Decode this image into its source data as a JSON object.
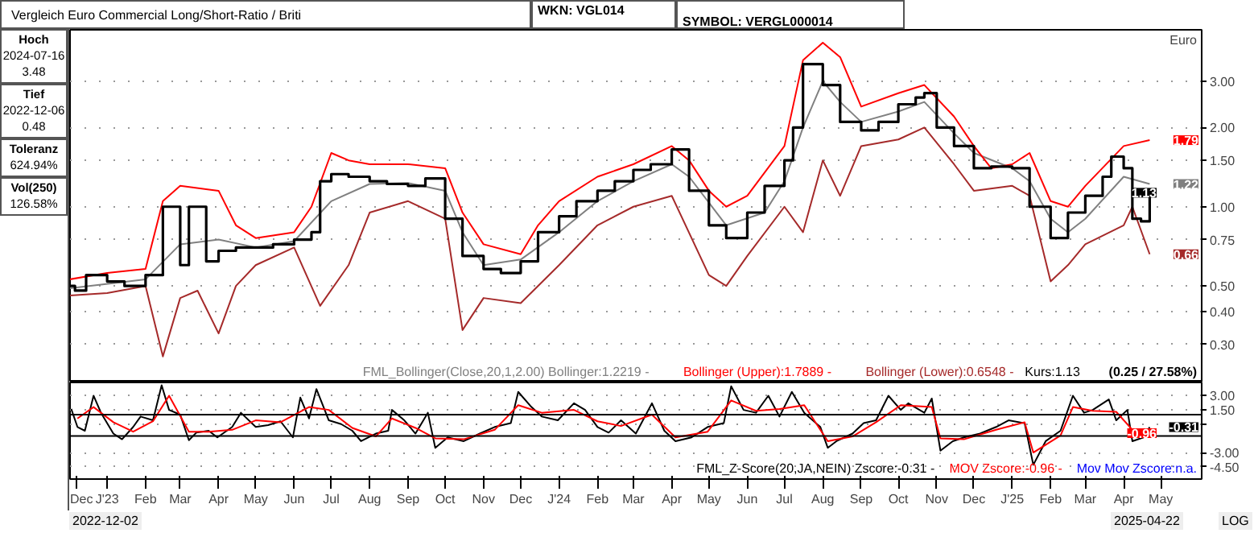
{
  "chart_data": [
    {
      "type": "line",
      "title": "Vergleich Euro Commercial Long/Short-Ratio / Briti",
      "subtitle": "WKN: VGL014",
      "ylabel": "Euro",
      "annotations": [
        "SYMBOL: VERGL000014",
        "Hoch\n2024-07-16\n3.48",
        "Tief\n2022-12-06\n0.48",
        "Toleranz\n624.94%",
        "Vol(250)\n126.58%",
        "(0.25 / 27.58%)",
        {
          "text": "1.79",
          "x": "2025-04-22",
          "y": 1.79
        },
        {
          "text": "1.22",
          "x": "2025-04-22",
          "y": 1.22
        },
        {
          "text": "1.13",
          "x": "2025-04-22",
          "y": 1.13
        },
        {
          "text": "0.66",
          "x": "2025-04-22",
          "y": 0.66
        }
      ],
      "xlim": [
        "2022-12-02",
        "2025-06-03"
      ],
      "ylim": [
        0.215,
        4.7
      ],
      "log": true,
      "grid": "y",
      "tick_labels": "y",
      "yticks": [
        {
          "value": 0.3,
          "label": "0.30"
        },
        {
          "value": 0.4,
          "label": "0.40"
        },
        {
          "value": 0.5,
          "label": "0.50"
        },
        {
          "value": 0.75,
          "label": "0.75"
        },
        {
          "value": 1,
          "label": "1.00"
        },
        {
          "value": 1.5,
          "label": "1.50"
        },
        {
          "value": 2,
          "label": "2.00"
        },
        {
          "value": 3,
          "label": "3.00"
        }
      ],
      "series": [
        {
          "name": "FML_Bollinger(Close,20,1,2.00) Bollinger:1.2219 -",
          "color": "#808080",
          "x": [
            "2022-12-02",
            "2023-02-01",
            "2023-03-01",
            "2023-04-01",
            "2023-05-01",
            "2023-06-01",
            "2023-07-01",
            "2023-08-01",
            "2023-09-01",
            "2023-10-01",
            "2023-10-15",
            "2023-11-01",
            "2023-12-01",
            "2024-01-01",
            "2024-02-01",
            "2024-03-01",
            "2024-04-01",
            "2024-04-15",
            "2024-05-15",
            "2024-06-15",
            "2024-07-01",
            "2024-07-16",
            "2024-08-01",
            "2024-08-15",
            "2024-09-01",
            "2024-10-01",
            "2024-10-22",
            "2024-11-15",
            "2024-12-01",
            "2025-01-01",
            "2025-01-15",
            "2025-02-01",
            "2025-02-15",
            "2025-03-01",
            "2025-04-01",
            "2025-04-22"
          ],
          "values": [
            0.49,
            0.53,
            0.72,
            0.75,
            0.7,
            0.74,
            1.05,
            1.22,
            1.23,
            1.15,
            0.8,
            0.6,
            0.63,
            0.8,
            1.05,
            1.25,
            1.45,
            1.3,
            0.85,
            0.95,
            1.25,
            2.0,
            3.0,
            2.5,
            2.1,
            2.3,
            2.5,
            1.9,
            1.6,
            1.4,
            1.25,
            0.9,
            0.8,
            0.9,
            1.3,
            1.22
          ]
        },
        {
          "name": "Bollinger (Upper):1.7889 -",
          "color": "#ff0000",
          "x": [
            "2022-12-02",
            "2023-01-01",
            "2023-02-01",
            "2023-02-15",
            "2023-03-01",
            "2023-04-01",
            "2023-04-15",
            "2023-05-01",
            "2023-06-01",
            "2023-06-15",
            "2023-07-01",
            "2023-07-15",
            "2023-08-01",
            "2023-09-01",
            "2023-10-01",
            "2023-10-15",
            "2023-11-01",
            "2023-12-01",
            "2023-12-15",
            "2024-01-01",
            "2024-02-01",
            "2024-03-01",
            "2024-04-01",
            "2024-04-15",
            "2024-05-01",
            "2024-05-15",
            "2024-06-01",
            "2024-07-01",
            "2024-07-16",
            "2024-08-01",
            "2024-08-15",
            "2024-09-01",
            "2024-10-01",
            "2024-10-22",
            "2024-11-15",
            "2024-12-01",
            "2024-12-15",
            "2025-01-01",
            "2025-01-15",
            "2025-02-01",
            "2025-02-15",
            "2025-03-01",
            "2025-04-01",
            "2025-04-22"
          ],
          "values": [
            0.53,
            0.56,
            0.58,
            1.05,
            1.2,
            1.15,
            0.85,
            0.76,
            0.8,
            1.0,
            1.6,
            1.5,
            1.45,
            1.45,
            1.4,
            0.95,
            0.72,
            0.66,
            0.85,
            1.05,
            1.3,
            1.45,
            1.7,
            1.5,
            1.15,
            1.0,
            1.1,
            1.7,
            3.6,
            4.2,
            3.7,
            2.4,
            2.7,
            2.9,
            2.2,
            1.7,
            1.4,
            1.45,
            1.6,
            1.05,
            1.0,
            1.2,
            1.7,
            1.79
          ]
        },
        {
          "name": "Bollinger (Lower):0.6548 -",
          "color": "#a52a2a",
          "x": [
            "2022-12-02",
            "2023-01-01",
            "2023-02-01",
            "2023-02-15",
            "2023-03-01",
            "2023-03-15",
            "2023-04-01",
            "2023-04-15",
            "2023-05-01",
            "2023-06-01",
            "2023-06-22",
            "2023-07-15",
            "2023-08-01",
            "2023-09-01",
            "2023-10-01",
            "2023-10-15",
            "2023-11-01",
            "2023-12-01",
            "2024-01-01",
            "2024-02-01",
            "2024-03-01",
            "2024-04-01",
            "2024-05-01",
            "2024-05-15",
            "2024-06-01",
            "2024-07-01",
            "2024-07-16",
            "2024-08-01",
            "2024-08-15",
            "2024-09-01",
            "2024-10-01",
            "2024-10-22",
            "2024-11-15",
            "2024-12-01",
            "2025-01-01",
            "2025-01-15",
            "2025-02-01",
            "2025-02-15",
            "2025-03-01",
            "2025-04-01",
            "2025-04-08",
            "2025-04-22"
          ],
          "values": [
            0.46,
            0.47,
            0.5,
            0.27,
            0.45,
            0.48,
            0.33,
            0.5,
            0.6,
            0.7,
            0.42,
            0.6,
            0.95,
            1.05,
            0.9,
            0.34,
            0.45,
            0.43,
            0.6,
            0.85,
            1.0,
            1.1,
            0.55,
            0.5,
            0.65,
            1.0,
            0.8,
            1.5,
            1.1,
            1.7,
            1.8,
            2.0,
            1.45,
            1.15,
            1.2,
            1.1,
            0.52,
            0.6,
            0.72,
            0.85,
            1.0,
            0.66
          ]
        },
        {
          "name": "Kurs:1.13",
          "color": "#000000",
          "type": "step",
          "x": [
            "2022-12-02",
            "2022-12-06",
            "2022-12-15",
            "2023-01-01",
            "2023-01-15",
            "2023-02-01",
            "2023-02-15",
            "2023-03-01",
            "2023-03-08",
            "2023-03-22",
            "2023-04-01",
            "2023-04-15",
            "2023-05-01",
            "2023-05-15",
            "2023-06-01",
            "2023-06-15",
            "2023-06-22",
            "2023-07-01",
            "2023-07-15",
            "2023-08-01",
            "2023-08-15",
            "2023-09-01",
            "2023-09-15",
            "2023-10-01",
            "2023-10-15",
            "2023-11-01",
            "2023-11-15",
            "2023-12-01",
            "2023-12-15",
            "2024-01-01",
            "2024-01-15",
            "2024-02-01",
            "2024-02-15",
            "2024-03-01",
            "2024-03-15",
            "2024-04-01",
            "2024-04-15",
            "2024-05-01",
            "2024-05-15",
            "2024-06-01",
            "2024-06-15",
            "2024-07-01",
            "2024-07-08",
            "2024-07-16",
            "2024-08-01",
            "2024-08-15",
            "2024-09-01",
            "2024-09-15",
            "2024-10-01",
            "2024-10-15",
            "2024-10-22",
            "2024-11-01",
            "2024-11-15",
            "2024-12-01",
            "2024-12-15",
            "2025-01-01",
            "2025-01-15",
            "2025-02-01",
            "2025-02-15",
            "2025-03-01",
            "2025-03-15",
            "2025-03-22",
            "2025-04-01",
            "2025-04-08",
            "2025-04-15",
            "2025-04-22"
          ],
          "values": [
            0.5,
            0.48,
            0.55,
            0.52,
            0.5,
            0.55,
            1.0,
            0.6,
            1.0,
            0.62,
            0.68,
            0.7,
            0.7,
            0.72,
            0.75,
            0.8,
            1.25,
            1.33,
            1.3,
            1.25,
            1.22,
            1.2,
            1.28,
            0.9,
            0.65,
            0.58,
            0.56,
            0.62,
            0.8,
            0.92,
            1.05,
            1.15,
            1.25,
            1.38,
            1.45,
            1.65,
            1.15,
            0.85,
            0.76,
            0.95,
            1.2,
            1.5,
            2.0,
            3.48,
            2.9,
            2.1,
            1.95,
            2.1,
            2.45,
            2.6,
            2.7,
            2.0,
            1.7,
            1.4,
            1.42,
            1.4,
            1.0,
            0.76,
            0.95,
            1.1,
            1.3,
            1.55,
            1.4,
            0.9,
            0.88,
            1.13
          ]
        }
      ]
    },
    {
      "type": "line",
      "xlim": [
        "2022-12-02",
        "2025-06-03"
      ],
      "ylim": [
        -5.8,
        4.4
      ],
      "grid": "y",
      "annotations": [
        "2022-12-02",
        "2025-04-22",
        "LOG",
        {
          "text": "-0.31",
          "x": "2025-04-22",
          "y": -0.31
        },
        {
          "text": "-0.96",
          "x": "2025-04-22",
          "y": -0.96
        }
      ],
      "xticks": [
        {
          "value": "2022-12-07",
          "label": "Dec"
        },
        {
          "value": "2023-01-01",
          "label": "J'23"
        },
        {
          "value": "2023-02-01",
          "label": "Feb"
        },
        {
          "value": "2023-03-01",
          "label": "Mar"
        },
        {
          "value": "2023-04-01",
          "label": "Apr"
        },
        {
          "value": "2023-05-01",
          "label": "May"
        },
        {
          "value": "2023-06-01",
          "label": "Jun"
        },
        {
          "value": "2023-07-01",
          "label": "Jul"
        },
        {
          "value": "2023-08-01",
          "label": "Aug"
        },
        {
          "value": "2023-09-01",
          "label": "Sep"
        },
        {
          "value": "2023-10-01",
          "label": "Oct"
        },
        {
          "value": "2023-11-01",
          "label": "Nov"
        },
        {
          "value": "2023-12-01",
          "label": "Dec"
        },
        {
          "value": "2024-01-01",
          "label": "J'24"
        },
        {
          "value": "2024-02-01",
          "label": "Feb"
        },
        {
          "value": "2024-03-01",
          "label": "Mar"
        },
        {
          "value": "2024-04-01",
          "label": "Apr"
        },
        {
          "value": "2024-05-01",
          "label": "May"
        },
        {
          "value": "2024-06-01",
          "label": "Jun"
        },
        {
          "value": "2024-07-01",
          "label": "Jul"
        },
        {
          "value": "2024-08-01",
          "label": "Aug"
        },
        {
          "value": "2024-09-01",
          "label": "Sep"
        },
        {
          "value": "2024-10-01",
          "label": "Oct"
        },
        {
          "value": "2024-11-01",
          "label": "Nov"
        },
        {
          "value": "2024-12-01",
          "label": "Dec"
        },
        {
          "value": "2025-01-01",
          "label": "J'25"
        },
        {
          "value": "2025-02-01",
          "label": "Feb"
        },
        {
          "value": "2025-03-01",
          "label": "Mar"
        },
        {
          "value": "2025-04-01",
          "label": "Apr"
        },
        {
          "value": "2025-05-01",
          "label": "May"
        }
      ],
      "yticks": [
        {
          "value": 3,
          "label": "3.00"
        },
        {
          "value": 1.5,
          "label": "1.50"
        },
        {
          "value": 0,
          "label": null
        },
        {
          "value": -3,
          "label": "-3.00"
        },
        {
          "value": -4.5,
          "label": "-4.50"
        }
      ],
      "ref_lines": [
        {
          "axis": "y",
          "value": 1,
          "color": "#000000",
          "line_style": "solid"
        },
        {
          "axis": "y",
          "value": -1.25,
          "color": "#000000",
          "line_style": "solid"
        }
      ],
      "series": [
        {
          "name": "FML_Z-Score(20,JA,NEIN) Zscore:-0.31 -",
          "color": "#000000",
          "x": [
            "2022-12-03",
            "2022-12-08",
            "2022-12-14",
            "2022-12-21",
            "2022-12-27",
            "2023-01-06",
            "2023-01-13",
            "2023-01-22",
            "2023-01-28",
            "2023-02-07",
            "2023-02-14",
            "2023-02-20",
            "2023-03-01",
            "2023-03-08",
            "2023-03-14",
            "2023-03-24",
            "2023-03-31",
            "2023-04-12",
            "2023-04-19",
            "2023-05-01",
            "2023-05-11",
            "2023-05-21",
            "2023-05-31",
            "2023-06-06",
            "2023-06-13",
            "2023-06-19",
            "2023-06-29",
            "2023-07-09",
            "2023-07-18",
            "2023-07-25",
            "2023-08-06",
            "2023-08-16",
            "2023-08-19",
            "2023-08-29",
            "2023-09-07",
            "2023-09-17",
            "2023-09-23",
            "2023-10-03",
            "2023-10-16",
            "2023-10-29",
            "2023-11-10",
            "2023-11-23",
            "2023-11-29",
            "2023-12-09",
            "2023-12-18",
            "2023-12-31",
            "2024-01-13",
            "2024-01-22",
            "2024-02-01",
            "2024-02-10",
            "2024-02-20",
            "2024-03-03",
            "2024-03-16",
            "2024-03-26",
            "2024-04-04",
            "2024-04-17",
            "2024-04-30",
            "2024-05-13",
            "2024-05-19",
            "2024-05-29",
            "2024-06-08",
            "2024-06-18",
            "2024-06-27",
            "2024-07-07",
            "2024-07-17",
            "2024-07-30",
            "2024-08-05",
            "2024-08-12",
            "2024-08-25",
            "2024-09-03",
            "2024-09-13",
            "2024-09-23",
            "2024-10-03",
            "2024-10-09",
            "2024-10-22",
            "2024-10-28",
            "2024-11-04",
            "2024-11-14",
            "2024-11-23",
            "2024-12-06",
            "2024-12-19",
            "2024-12-29",
            "2025-01-11",
            "2025-01-18",
            "2025-01-28",
            "2025-02-09",
            "2025-02-19",
            "2025-02-28",
            "2025-03-07",
            "2025-03-20",
            "2025-03-26",
            "2025-04-04",
            "2025-04-08",
            "2025-04-17",
            "2025-04-22"
          ],
          "values": [
            1.6,
            -0.3,
            -0.7,
            3.0,
            1.2,
            -1.0,
            -1.6,
            -0.3,
            0.8,
            0.4,
            4.1,
            1.5,
            1.0,
            -1.7,
            -0.9,
            -0.7,
            -1.4,
            -0.3,
            1.2,
            -0.3,
            -0.1,
            0.3,
            -1.4,
            2.8,
            0.6,
            3.7,
            0.4,
            0.0,
            -0.7,
            -1.8,
            -1.0,
            -0.7,
            1.5,
            0.4,
            -1.0,
            1.2,
            -2.5,
            -1.4,
            -1.8,
            -1.0,
            -0.3,
            0.1,
            3.4,
            1.9,
            0.8,
            0.4,
            2.2,
            1.5,
            -0.3,
            -0.9,
            0.4,
            -1.0,
            2.2,
            -0.7,
            -1.8,
            -1.4,
            -0.3,
            0.1,
            4.0,
            1.5,
            1.2,
            3.0,
            0.8,
            3.4,
            1.2,
            -0.3,
            -2.5,
            -1.8,
            -1.0,
            0.1,
            0.4,
            3.0,
            1.5,
            2.2,
            1.2,
            2.7,
            -2.8,
            -1.8,
            -1.4,
            -1.0,
            -0.3,
            0.4,
            0.1,
            -4.3,
            -1.8,
            -0.7,
            3.0,
            1.2,
            1.5,
            2.6,
            0.4,
            1.5,
            -1.8,
            -1.4,
            -0.31
          ]
        },
        {
          "name": "MOV Zscore:-0.96 -",
          "color": "#ff0000",
          "x": [
            "2022-12-08",
            "2022-12-21",
            "2023-01-06",
            "2023-01-22",
            "2023-02-07",
            "2023-02-20",
            "2023-03-08",
            "2023-03-24",
            "2023-04-12",
            "2023-05-01",
            "2023-05-21",
            "2023-06-13",
            "2023-06-29",
            "2023-07-18",
            "2023-08-06",
            "2023-08-19",
            "2023-09-07",
            "2023-09-23",
            "2023-10-16",
            "2023-11-10",
            "2023-11-29",
            "2023-12-18",
            "2024-01-13",
            "2024-02-01",
            "2024-02-20",
            "2024-03-16",
            "2024-04-04",
            "2024-04-30",
            "2024-05-19",
            "2024-06-08",
            "2024-06-27",
            "2024-07-17",
            "2024-08-05",
            "2024-08-25",
            "2024-09-13",
            "2024-10-03",
            "2024-10-28",
            "2024-11-04",
            "2024-11-23",
            "2024-12-19",
            "2025-01-11",
            "2025-01-18",
            "2025-02-09",
            "2025-02-19",
            "2025-03-07",
            "2025-03-26",
            "2025-04-08",
            "2025-04-22"
          ],
          "values": [
            0.6,
            1.8,
            0.2,
            -0.8,
            0.3,
            3.0,
            -0.8,
            -0.8,
            -0.6,
            0.4,
            0.2,
            1.8,
            1.5,
            -0.4,
            -1.3,
            0.6,
            -0.4,
            -1.5,
            -1.6,
            -0.6,
            2.0,
            1.2,
            1.5,
            0.3,
            -0.2,
            1.0,
            -1.4,
            -0.8,
            2.5,
            1.4,
            1.6,
            2.0,
            -1.8,
            -1.3,
            0.2,
            2.0,
            1.8,
            -1.5,
            -1.6,
            -0.6,
            0.2,
            -3.0,
            -1.2,
            1.8,
            1.4,
            1.3,
            -0.6,
            -0.96
          ]
        },
        {
          "name": "Mov Mov Zscore:n.a.",
          "color": "#0000ff"
        }
      ]
    }
  ]
}
